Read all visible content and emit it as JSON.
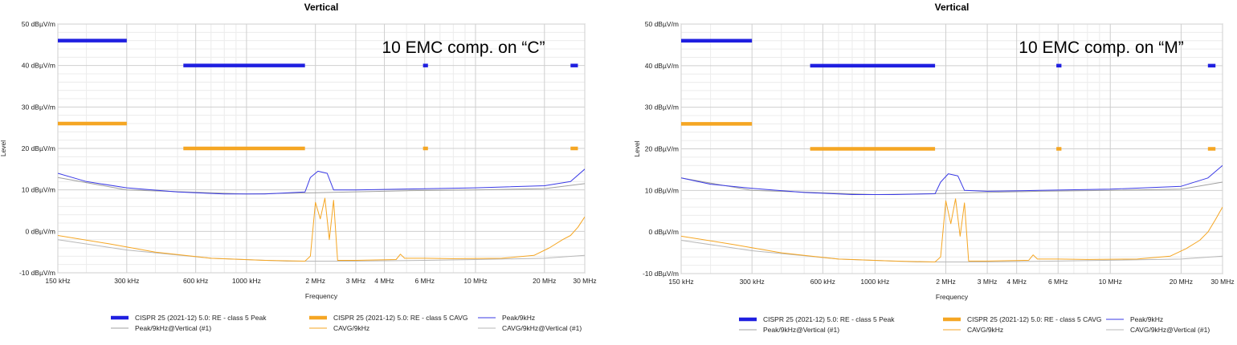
{
  "chart_data": [
    {
      "type": "line",
      "title": "Vertical",
      "annotation": "10 EMC comp. on “C”",
      "xlabel": "Frequency",
      "ylabel": "Level",
      "x_scale": "log",
      "xlim_mhz": [
        0.15,
        30
      ],
      "ylim": [
        -10,
        50
      ],
      "grid": true,
      "x_ticks": [
        {
          "mhz": 0.15,
          "label": "150 kHz"
        },
        {
          "mhz": 0.3,
          "label": "300 kHz"
        },
        {
          "mhz": 0.6,
          "label": "600 kHz"
        },
        {
          "mhz": 1,
          "label": "1000 kHz"
        },
        {
          "mhz": 2,
          "label": "2 MHz"
        },
        {
          "mhz": 3,
          "label": "3 MHz"
        },
        {
          "mhz": 4,
          "label": "4 MHz"
        },
        {
          "mhz": 6,
          "label": "6 MHz"
        },
        {
          "mhz": 10,
          "label": "10 MHz"
        },
        {
          "mhz": 20,
          "label": "20 MHz"
        },
        {
          "mhz": 30,
          "label": "30 MHz"
        }
      ],
      "y_ticks": [
        {
          "value": 50,
          "label": "50 dBµV/m"
        },
        {
          "value": 40,
          "label": "40 dBµV/m"
        },
        {
          "value": 30,
          "label": "30 dBµV/m"
        },
        {
          "value": 20,
          "label": "20 dBµV/m"
        },
        {
          "value": 10,
          "label": "10 dBµV/m"
        },
        {
          "value": 0,
          "label": "0 dBµV/m"
        },
        {
          "value": -10,
          "label": "-10 dBµV/m"
        }
      ],
      "limit_series": [
        {
          "name": "CISPR 25 (2021-12) 5.0: RE - class 5 Peak",
          "color": "#1f1fe0",
          "segments": [
            [
              0.15,
              0.3,
              46
            ],
            [
              0.53,
              1.8,
              40
            ],
            [
              5.9,
              6.2,
              40
            ],
            [
              26,
              28,
              40
            ]
          ]
        },
        {
          "name": "CISPR 25 (2021-12) 5.0: RE - class 5 CAVG",
          "color": "#f5a623",
          "segments": [
            [
              0.15,
              0.3,
              26
            ],
            [
              0.53,
              1.8,
              20
            ],
            [
              5.9,
              6.2,
              20
            ],
            [
              26,
              28,
              20
            ]
          ]
        }
      ],
      "series": [
        {
          "name": "Peak/9kHz",
          "color": "#3a3ae6",
          "points": [
            [
              0.15,
              14
            ],
            [
              0.2,
              12
            ],
            [
              0.3,
              10.5
            ],
            [
              0.5,
              9.5
            ],
            [
              0.8,
              9
            ],
            [
              1.2,
              9
            ],
            [
              1.8,
              9.5
            ],
            [
              1.9,
              13
            ],
            [
              2.05,
              14.5
            ],
            [
              2.25,
              14
            ],
            [
              2.4,
              10
            ],
            [
              3,
              10
            ],
            [
              5,
              10.2
            ],
            [
              10,
              10.5
            ],
            [
              20,
              11
            ],
            [
              26,
              12
            ],
            [
              30,
              15
            ]
          ]
        },
        {
          "name": "Peak/9kHz@Vertical (#1)",
          "color": "#a0a0a0",
          "points": [
            [
              0.15,
              13
            ],
            [
              0.3,
              10
            ],
            [
              1,
              9
            ],
            [
              2,
              9.3
            ],
            [
              5,
              9.8
            ],
            [
              10,
              10
            ],
            [
              20,
              10.3
            ],
            [
              30,
              11.5
            ]
          ]
        },
        {
          "name": "CAVG/9kHz",
          "color": "#f5a623",
          "points": [
            [
              0.15,
              -1
            ],
            [
              0.25,
              -3
            ],
            [
              0.4,
              -5
            ],
            [
              0.7,
              -6.5
            ],
            [
              1.2,
              -7
            ],
            [
              1.8,
              -7.2
            ],
            [
              1.9,
              -6
            ],
            [
              2.0,
              7
            ],
            [
              2.1,
              3
            ],
            [
              2.2,
              8
            ],
            [
              2.3,
              -2
            ],
            [
              2.4,
              7.5
            ],
            [
              2.5,
              -7
            ],
            [
              3,
              -7
            ],
            [
              4.5,
              -6.8
            ],
            [
              4.7,
              -5.5
            ],
            [
              4.9,
              -6.5
            ],
            [
              6,
              -6.5
            ],
            [
              8,
              -6.6
            ],
            [
              13,
              -6.5
            ],
            [
              18,
              -5.8
            ],
            [
              21,
              -4
            ],
            [
              24,
              -2
            ],
            [
              26,
              -1
            ],
            [
              28,
              1
            ],
            [
              30,
              3.5
            ]
          ]
        },
        {
          "name": "CAVG/9kHz@Vertical (#1)",
          "color": "#b8b8b8",
          "points": [
            [
              0.15,
              -2
            ],
            [
              0.3,
              -4.5
            ],
            [
              0.7,
              -6.5
            ],
            [
              1.5,
              -7.2
            ],
            [
              3,
              -7.2
            ],
            [
              6,
              -7
            ],
            [
              10,
              -6.8
            ],
            [
              20,
              -6.5
            ],
            [
              30,
              -5.8
            ]
          ]
        }
      ]
    },
    {
      "type": "line",
      "title": "Vertical",
      "annotation": "10 EMC comp. on “M”",
      "xlabel": "Frequency",
      "ylabel": "Level",
      "x_scale": "log",
      "xlim_mhz": [
        0.15,
        30
      ],
      "ylim": [
        -10,
        50
      ],
      "grid": true,
      "x_ticks": [
        {
          "mhz": 0.15,
          "label": "150 kHz"
        },
        {
          "mhz": 0.3,
          "label": "300 kHz"
        },
        {
          "mhz": 0.6,
          "label": "600 kHz"
        },
        {
          "mhz": 1,
          "label": "1000 kHz"
        },
        {
          "mhz": 2,
          "label": "2 MHz"
        },
        {
          "mhz": 3,
          "label": "3 MHz"
        },
        {
          "mhz": 4,
          "label": "4 MHz"
        },
        {
          "mhz": 6,
          "label": "6 MHz"
        },
        {
          "mhz": 10,
          "label": "10 MHz"
        },
        {
          "mhz": 20,
          "label": "20 MHz"
        },
        {
          "mhz": 30,
          "label": "30 MHz"
        }
      ],
      "y_ticks": [
        {
          "value": 50,
          "label": "50 dBµV/m"
        },
        {
          "value": 40,
          "label": "40 dBµV/m"
        },
        {
          "value": 30,
          "label": "30 dBµV/m"
        },
        {
          "value": 20,
          "label": "20 dBµV/m"
        },
        {
          "value": 10,
          "label": "10 dBµV/m"
        },
        {
          "value": 0,
          "label": "0 dBµV/m"
        },
        {
          "value": -10,
          "label": "-10 dBµV/m"
        }
      ],
      "limit_series": [
        {
          "name": "CISPR 25 (2021-12) 5.0: RE - class 5 Peak",
          "color": "#1f1fe0",
          "segments": [
            [
              0.15,
              0.3,
              46
            ],
            [
              0.53,
              1.8,
              40
            ],
            [
              5.9,
              6.2,
              40
            ],
            [
              26,
              28,
              40
            ]
          ]
        },
        {
          "name": "CISPR 25 (2021-12) 5.0: RE - class 5 CAVG",
          "color": "#f5a623",
          "segments": [
            [
              0.15,
              0.3,
              26
            ],
            [
              0.53,
              1.8,
              20
            ],
            [
              5.9,
              6.2,
              20
            ],
            [
              26,
              28,
              20
            ]
          ]
        }
      ],
      "series": [
        {
          "name": "Peak/9kHz",
          "color": "#3a3ae6",
          "points": [
            [
              0.15,
              13
            ],
            [
              0.2,
              11.5
            ],
            [
              0.3,
              10.5
            ],
            [
              0.5,
              9.5
            ],
            [
              0.8,
              9
            ],
            [
              1.2,
              9
            ],
            [
              1.8,
              9.2
            ],
            [
              1.9,
              12
            ],
            [
              2.05,
              14
            ],
            [
              2.25,
              13.5
            ],
            [
              2.4,
              10
            ],
            [
              3,
              9.8
            ],
            [
              5,
              10
            ],
            [
              10,
              10.3
            ],
            [
              20,
              11
            ],
            [
              26,
              13
            ],
            [
              30,
              16
            ]
          ]
        },
        {
          "name": "Peak/9kHz@Vertical (#1)",
          "color": "#a0a0a0",
          "points": [
            [
              0.15,
              13
            ],
            [
              0.3,
              10
            ],
            [
              1,
              9
            ],
            [
              2,
              9.3
            ],
            [
              5,
              9.8
            ],
            [
              10,
              10
            ],
            [
              20,
              10.3
            ],
            [
              30,
              12
            ]
          ]
        },
        {
          "name": "CAVG/9kHz",
          "color": "#f5a623",
          "points": [
            [
              0.15,
              -1
            ],
            [
              0.25,
              -3
            ],
            [
              0.4,
              -5
            ],
            [
              0.7,
              -6.5
            ],
            [
              1.2,
              -7
            ],
            [
              1.8,
              -7.2
            ],
            [
              1.9,
              -6
            ],
            [
              2.0,
              7.5
            ],
            [
              2.1,
              2
            ],
            [
              2.2,
              8
            ],
            [
              2.3,
              -1
            ],
            [
              2.4,
              7
            ],
            [
              2.5,
              -7
            ],
            [
              3,
              -7
            ],
            [
              4.5,
              -6.8
            ],
            [
              4.7,
              -5.5
            ],
            [
              4.9,
              -6.5
            ],
            [
              6,
              -6.5
            ],
            [
              8,
              -6.6
            ],
            [
              13,
              -6.5
            ],
            [
              18,
              -5.8
            ],
            [
              21,
              -4
            ],
            [
              24,
              -2
            ],
            [
              26,
              0
            ],
            [
              28,
              3
            ],
            [
              30,
              6
            ]
          ]
        },
        {
          "name": "CAVG/9kHz@Vertical (#1)",
          "color": "#b8b8b8",
          "points": [
            [
              0.15,
              -2
            ],
            [
              0.3,
              -4.5
            ],
            [
              0.7,
              -6.5
            ],
            [
              1.5,
              -7.2
            ],
            [
              3,
              -7.2
            ],
            [
              6,
              -7
            ],
            [
              10,
              -6.8
            ],
            [
              20,
              -6.5
            ],
            [
              30,
              -5.8
            ]
          ]
        }
      ]
    }
  ]
}
